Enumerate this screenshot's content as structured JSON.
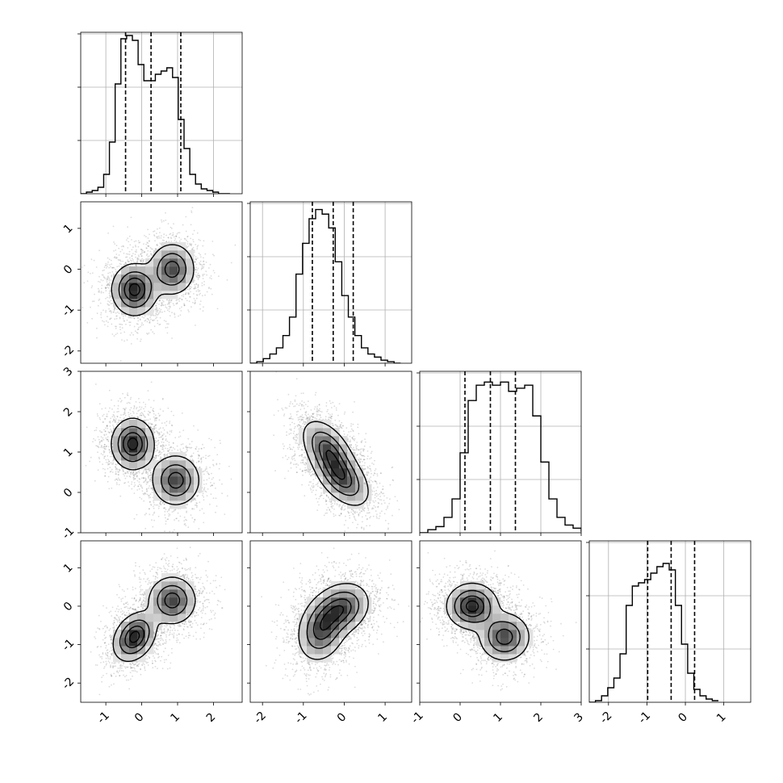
{
  "colors": {
    "points": "#000000",
    "density": "#000000",
    "grid": "#b0b0b0",
    "background": "#ffffff"
  },
  "chart_data": {
    "type": "corner",
    "parameters": 4,
    "grid": true,
    "histograms": [
      {
        "index": 0,
        "edges_start": -1.7,
        "bin_width": 0.16,
        "counts": [
          0,
          1,
          2,
          4,
          12,
          32,
          68,
          96,
          98,
          95,
          80,
          70,
          70,
          74,
          76,
          78,
          72,
          46,
          28,
          12,
          6,
          3,
          2,
          1,
          0,
          0
        ],
        "ymax": 100,
        "quantiles": [
          -0.45,
          0.26,
          1.09
        ],
        "xlim": [
          -1.7,
          2.8
        ]
      },
      {
        "index": 1,
        "edges_start": -2.3,
        "bin_width": 0.16,
        "counts": [
          0,
          1,
          3,
          6,
          10,
          18,
          30,
          58,
          78,
          94,
          100,
          97,
          88,
          66,
          44,
          30,
          18,
          10,
          6,
          4,
          2,
          1,
          0
        ],
        "ymax": 105,
        "quantiles": [
          -0.78,
          -0.27,
          0.22
        ],
        "xlim": [
          -2.3,
          1.65
        ]
      },
      {
        "index": 2,
        "edges_start": -1.0,
        "bin_width": 0.2,
        "counts": [
          0,
          2,
          4,
          10,
          22,
          52,
          86,
          96,
          98,
          96,
          98,
          92,
          94,
          96,
          76,
          46,
          22,
          10,
          5,
          3,
          1,
          0
        ],
        "ymax": 105,
        "quantiles": [
          0.12,
          0.75,
          1.37
        ],
        "xlim": [
          -1.0,
          3.0
        ]
      },
      {
        "index": 3,
        "edges_start": -2.5,
        "bin_width": 0.16,
        "counts": [
          0,
          1,
          4,
          9,
          15,
          30,
          60,
          72,
          74,
          76,
          80,
          84,
          86,
          82,
          60,
          36,
          18,
          8,
          4,
          2,
          1
        ],
        "ymax": 100,
        "quantiles": [
          -0.98,
          -0.37,
          0.24
        ],
        "xlim": [
          -2.5,
          1.7
        ]
      }
    ],
    "ranges": [
      [
        -1.7,
        2.8
      ],
      [
        -2.3,
        1.65
      ],
      [
        -1.0,
        3.0
      ],
      [
        -2.5,
        1.7
      ]
    ],
    "ticks": [
      [
        "-1",
        "0",
        "1",
        "2"
      ],
      [
        "-2",
        "-1",
        "0",
        "1"
      ],
      [
        "-1",
        "0",
        "1",
        "2",
        "3"
      ],
      [
        "-2",
        "-1",
        "0",
        "1"
      ]
    ],
    "tick_values": [
      [
        -1,
        0,
        1,
        2
      ],
      [
        -2,
        -1,
        0,
        1
      ],
      [
        -1,
        0,
        1,
        2,
        3
      ],
      [
        -2,
        -1,
        0,
        1
      ]
    ],
    "pairs": [
      {
        "row": 1,
        "col": 0,
        "clusters": [
          {
            "x": -0.2,
            "y": -0.5,
            "sx": 0.32,
            "sy": 0.32,
            "rho": 0.0,
            "w": 0.55
          },
          {
            "x": 0.85,
            "y": 0.0,
            "sx": 0.32,
            "sy": 0.32,
            "rho": 0.0,
            "w": 0.45
          }
        ],
        "scatter_n": 2600
      },
      {
        "row": 2,
        "col": 0,
        "clusters": [
          {
            "x": -0.25,
            "y": 1.2,
            "sx": 0.3,
            "sy": 0.32,
            "rho": 0.0,
            "w": 0.55
          },
          {
            "x": 0.95,
            "y": 0.3,
            "sx": 0.34,
            "sy": 0.32,
            "rho": 0.0,
            "w": 0.45
          }
        ],
        "scatter_n": 2600
      },
      {
        "row": 2,
        "col": 1,
        "clusters": [
          {
            "x": -0.4,
            "y": 1.05,
            "sx": 0.32,
            "sy": 0.38,
            "rho": -0.5,
            "w": 0.5
          },
          {
            "x": -0.05,
            "y": 0.35,
            "sx": 0.34,
            "sy": 0.36,
            "rho": -0.5,
            "w": 0.5
          }
        ],
        "scatter_n": 2600
      },
      {
        "row": 3,
        "col": 0,
        "clusters": [
          {
            "x": -0.2,
            "y": -0.8,
            "sx": 0.3,
            "sy": 0.32,
            "rho": 0.3,
            "w": 0.55
          },
          {
            "x": 0.85,
            "y": 0.15,
            "sx": 0.34,
            "sy": 0.32,
            "rho": 0.0,
            "w": 0.45
          }
        ],
        "scatter_n": 2600
      },
      {
        "row": 3,
        "col": 1,
        "clusters": [
          {
            "x": -0.55,
            "y": -0.6,
            "sx": 0.3,
            "sy": 0.42,
            "rho": 0.2,
            "w": 0.5
          },
          {
            "x": -0.05,
            "y": -0.05,
            "sx": 0.34,
            "sy": 0.34,
            "rho": 0.2,
            "w": 0.5
          }
        ],
        "scatter_n": 2600
      },
      {
        "row": 3,
        "col": 2,
        "clusters": [
          {
            "x": 0.3,
            "y": 0.0,
            "sx": 0.32,
            "sy": 0.3,
            "rho": 0.0,
            "w": 0.55
          },
          {
            "x": 1.1,
            "y": -0.8,
            "sx": 0.32,
            "sy": 0.32,
            "rho": 0.0,
            "w": 0.45
          }
        ],
        "scatter_n": 2600
      }
    ]
  }
}
